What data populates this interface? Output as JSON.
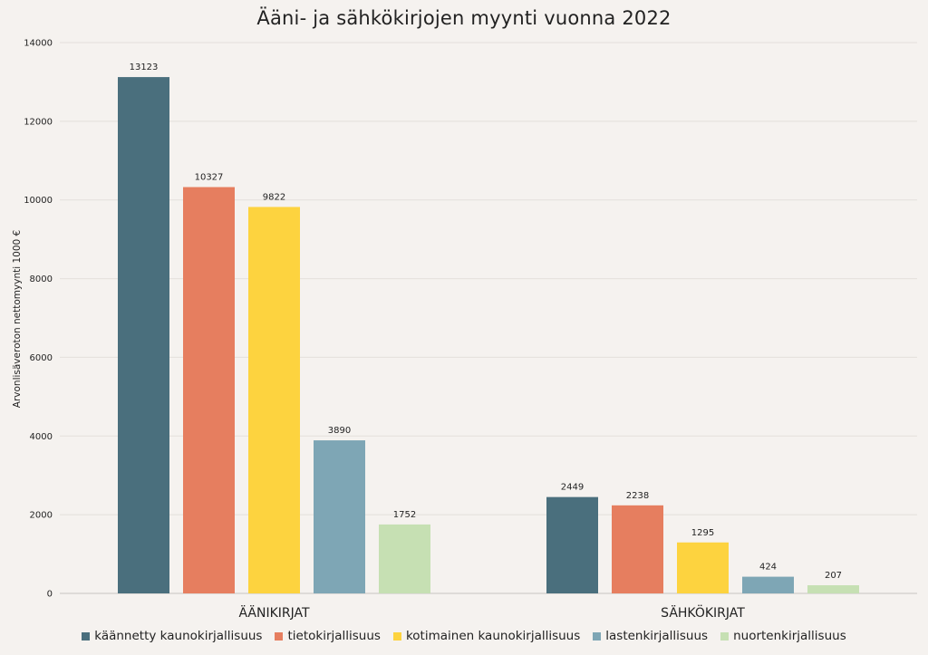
{
  "chart_data": {
    "type": "bar",
    "title": "Ääni- ja sähkökirjojen myynti vuonna 2022",
    "xlabel": "",
    "ylabel": "Arvonlisäveroton nettomyynti 1000 €",
    "categories": [
      "ÄÄNIKIRJAT",
      "SÄHKÖKIRJAT"
    ],
    "ylim": [
      0,
      14000
    ],
    "yticks": [
      0,
      2000,
      4000,
      6000,
      8000,
      10000,
      12000,
      14000
    ],
    "grid": true,
    "legend_position": "bottom",
    "data_labels": true,
    "series": [
      {
        "name": "käännetty kaunokirjallisuus",
        "color": "#4a6f7d",
        "values": [
          13123,
          2449
        ]
      },
      {
        "name": "tietokirjallisuus",
        "color": "#e67e5f",
        "values": [
          10327,
          2238
        ]
      },
      {
        "name": "kotimainen kaunokirjallisuus",
        "color": "#fdd33f",
        "values": [
          9822,
          1295
        ]
      },
      {
        "name": "lastenkirjallisuus",
        "color": "#7ea6b5",
        "values": [
          3890,
          424
        ]
      },
      {
        "name": "nuortenkirjallisuus",
        "color": "#c6e0b3",
        "values": [
          1752,
          207
        ]
      }
    ]
  }
}
